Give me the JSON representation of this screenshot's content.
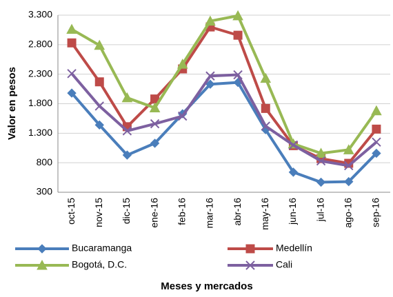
{
  "chart_data": {
    "type": "line",
    "y_label": "Valor en pesos",
    "x_label": "Meses y mercados",
    "categories": [
      "oct-15",
      "nov-15",
      "dic-15",
      "ene-16",
      "feb-16",
      "mar-16",
      "abr-16",
      "may-16",
      "jun-16",
      "jul-16",
      "ago-16",
      "sep-16"
    ],
    "series": [
      {
        "name": "Bucaramanga",
        "color": "#4a7ebb",
        "marker": "diamond",
        "values": [
          1980,
          1440,
          930,
          1130,
          1630,
          2130,
          2160,
          1360,
          640,
          470,
          480,
          960
        ]
      },
      {
        "name": "Medellín",
        "color": "#be4b48",
        "marker": "square",
        "values": [
          2830,
          2170,
          1410,
          1880,
          2390,
          3100,
          2960,
          1720,
          1090,
          870,
          790,
          1370
        ]
      },
      {
        "name": "Bogotá, D.C.",
        "color": "#98b954",
        "marker": "triangle",
        "values": [
          3060,
          2790,
          1900,
          1730,
          2470,
          3200,
          3290,
          2230,
          1120,
          960,
          1020,
          1680
        ]
      },
      {
        "name": "Cali",
        "color": "#7d60a0",
        "marker": "x",
        "values": [
          2310,
          1760,
          1340,
          1460,
          1590,
          2270,
          2290,
          1420,
          1100,
          830,
          750,
          1150
        ]
      }
    ],
    "ylim": [
      300,
      3300
    ],
    "yticks": [
      300,
      800,
      {
        "value": 1300,
        "label": "1.300"
      },
      {
        "value": 1800,
        "label": "1.800"
      },
      {
        "value": 2300,
        "label": "2.300"
      },
      {
        "value": 2800,
        "label": "2.800"
      },
      {
        "value": 3300,
        "label": "3.300"
      }
    ],
    "grid": true
  }
}
